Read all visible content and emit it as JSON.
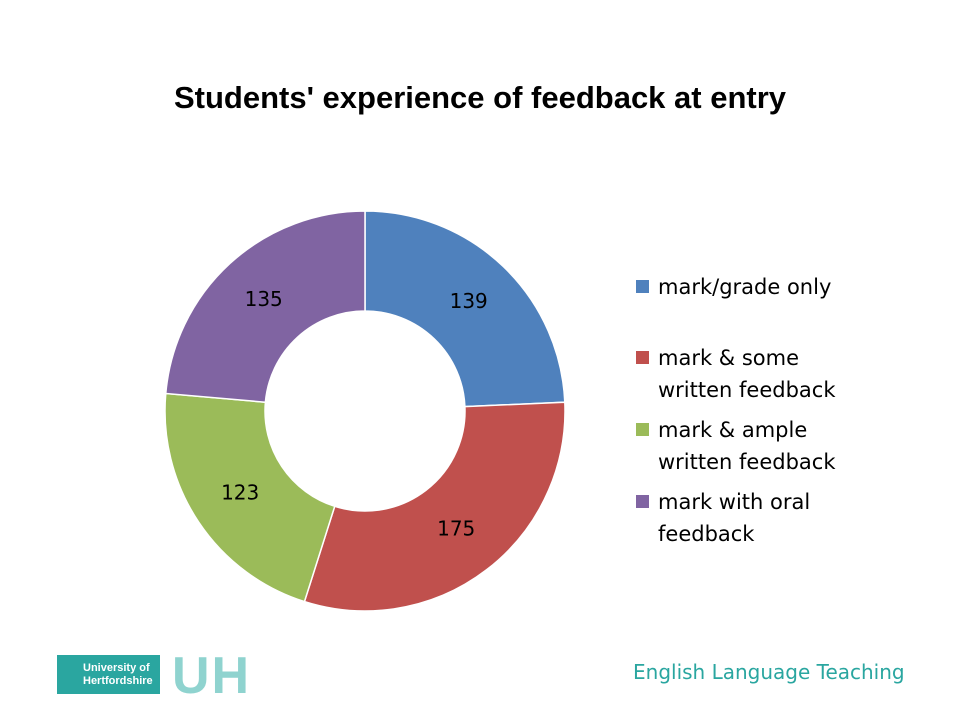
{
  "chart_data": {
    "type": "donut",
    "title": "Students' experience of feedback at entry",
    "categories": [
      "mark/grade only",
      "mark & some written feedback",
      "mark & ample written feedback",
      "mark with oral feedback"
    ],
    "values": [
      139,
      175,
      123,
      135
    ],
    "colors": [
      "#4f81bd",
      "#c0504d",
      "#9bbb59",
      "#8064a2"
    ],
    "legend": "right"
  },
  "footer": {
    "text": "English Language Teaching",
    "logo": {
      "lines": [
        "University of",
        "Hertfordshire"
      ],
      "mark": "UH"
    }
  }
}
